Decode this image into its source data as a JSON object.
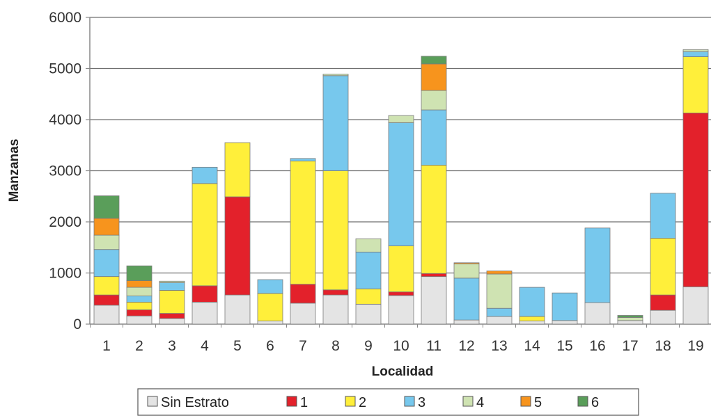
{
  "chart_data": {
    "type": "bar",
    "stacked": true,
    "title": "",
    "xlabel": "Localidad",
    "ylabel": "Manzanas",
    "ylim": [
      0,
      6000
    ],
    "yticks": [
      "0",
      "1000",
      "2000",
      "3000",
      "4000",
      "5000",
      "6000"
    ],
    "grid": true,
    "legend_position": "bottom",
    "categories": [
      "1",
      "2",
      "3",
      "4",
      "5",
      "6",
      "7",
      "8",
      "9",
      "10",
      "11",
      "12",
      "13",
      "14",
      "15",
      "16",
      "17",
      "18",
      "19"
    ],
    "series": [
      {
        "name": "Sin Estrato",
        "color": "#e4e4e4",
        "values": [
          370,
          160,
          110,
          430,
          570,
          60,
          410,
          570,
          390,
          560,
          930,
          80,
          150,
          60,
          70,
          420,
          70,
          270,
          730
        ]
      },
      {
        "name": "1",
        "color": "#e3212b",
        "values": [
          200,
          120,
          100,
          320,
          1920,
          0,
          370,
          100,
          0,
          70,
          60,
          0,
          0,
          0,
          0,
          0,
          0,
          300,
          3400
        ]
      },
      {
        "name": "2",
        "color": "#ffef3a",
        "values": [
          360,
          150,
          450,
          2000,
          1060,
          540,
          2410,
          2330,
          300,
          900,
          2120,
          0,
          0,
          90,
          0,
          0,
          0,
          1110,
          1100
        ]
      },
      {
        "name": "3",
        "color": "#77c8ed",
        "values": [
          530,
          120,
          150,
          320,
          0,
          270,
          50,
          1860,
          720,
          2410,
          1080,
          820,
          160,
          570,
          540,
          1460,
          0,
          880,
          100
        ]
      },
      {
        "name": "4",
        "color": "#cfe3b2",
        "values": [
          280,
          170,
          30,
          0,
          0,
          0,
          0,
          30,
          260,
          140,
          380,
          280,
          670,
          0,
          0,
          0,
          60,
          0,
          40
        ]
      },
      {
        "name": "5",
        "color": "#f7941d",
        "values": [
          330,
          130,
          0,
          0,
          0,
          0,
          0,
          0,
          0,
          0,
          520,
          20,
          60,
          0,
          0,
          0,
          0,
          0,
          0
        ]
      },
      {
        "name": "6",
        "color": "#5a9e5a",
        "values": [
          440,
          290,
          0,
          0,
          0,
          0,
          0,
          0,
          0,
          0,
          150,
          0,
          0,
          0,
          0,
          0,
          40,
          0,
          0
        ]
      }
    ]
  }
}
